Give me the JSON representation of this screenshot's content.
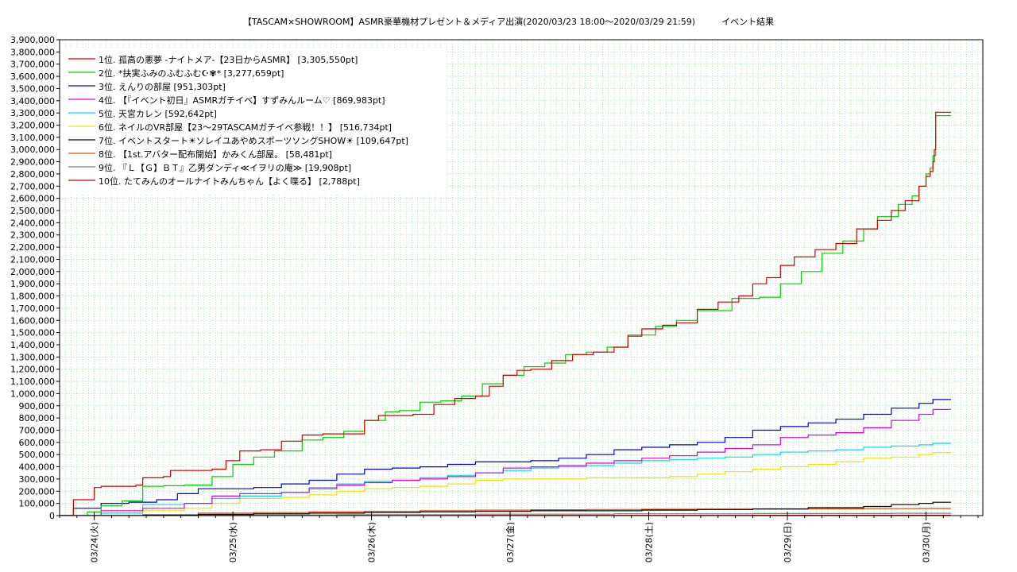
{
  "chart_data": {
    "type": "line",
    "title": "【TASCAM×SHOWROOM】ASMR豪華機材プレゼント＆メディア出演(2020/03/23 18:00〜2020/03/29 21:59)　　　イベント結果",
    "xlabel": "",
    "ylabel": "",
    "x_range_days": [
      0,
      6.66
    ],
    "ylim": [
      0,
      3900000
    ],
    "grid": true,
    "legend_placement": "top-left",
    "x_tick_labels": [
      "03/24(火)",
      "03/25(水)",
      "03/26(木)",
      "03/27(金)",
      "03/28(土)",
      "03/29(日)",
      "03/30(月)"
    ],
    "x_tick_positions_days": [
      0.25,
      1.25,
      2.25,
      3.25,
      4.25,
      5.25,
      6.25
    ],
    "y_ticks": [
      0,
      100000,
      200000,
      300000,
      400000,
      500000,
      600000,
      700000,
      800000,
      900000,
      1000000,
      1100000,
      1200000,
      1300000,
      1400000,
      1500000,
      1600000,
      1700000,
      1800000,
      1900000,
      2000000,
      2100000,
      2200000,
      2300000,
      2400000,
      2500000,
      2600000,
      2700000,
      2800000,
      2900000,
      3000000,
      3100000,
      3200000,
      3300000,
      3400000,
      3500000,
      3600000,
      3700000,
      3800000,
      3900000
    ],
    "series": [
      {
        "name": "1位. 孤高の悪夢 -ナイトメア-【23日からASMR】 [3,305,550pt]",
        "color": "#d40000",
        "x": [
          0,
          0.1,
          0.25,
          0.3,
          0.55,
          0.6,
          0.75,
          0.8,
          1.1,
          1.2,
          1.3,
          1.45,
          1.6,
          1.75,
          1.9,
          2.2,
          2.3,
          2.55,
          2.7,
          2.85,
          3.0,
          3.1,
          3.2,
          3.3,
          3.4,
          3.55,
          3.7,
          3.85,
          4.0,
          4.1,
          4.2,
          4.35,
          4.45,
          4.6,
          4.75,
          4.9,
          5.0,
          5.1,
          5.2,
          5.3,
          5.45,
          5.6,
          5.75,
          5.9,
          6.0,
          6.1,
          6.2,
          6.25,
          6.28,
          6.3,
          6.31,
          6.32,
          6.35,
          6.43
        ],
        "y": [
          0,
          130000,
          230000,
          240000,
          250000,
          310000,
          320000,
          370000,
          380000,
          450000,
          530000,
          540000,
          610000,
          660000,
          670000,
          780000,
          820000,
          830000,
          910000,
          960000,
          980000,
          1060000,
          1150000,
          1190000,
          1200000,
          1270000,
          1320000,
          1340000,
          1380000,
          1470000,
          1530000,
          1560000,
          1580000,
          1690000,
          1750000,
          1800000,
          1900000,
          1950000,
          2050000,
          2120000,
          2180000,
          2230000,
          2350000,
          2420000,
          2500000,
          2580000,
          2700000,
          2780000,
          2820000,
          2900000,
          3000000,
          3305550,
          3305550,
          3305550
        ]
      },
      {
        "name": "2位. *扶実ふみのふむふむ☪︎✾* [3,277,659pt]",
        "color": "#00d000",
        "x": [
          0,
          0.2,
          0.3,
          0.45,
          0.6,
          0.75,
          0.9,
          1.1,
          1.25,
          1.4,
          1.55,
          1.75,
          1.9,
          2.05,
          2.2,
          2.35,
          2.45,
          2.6,
          2.75,
          2.9,
          3.05,
          3.2,
          3.35,
          3.5,
          3.65,
          3.8,
          3.95,
          4.1,
          4.3,
          4.45,
          4.6,
          4.85,
          5.05,
          5.2,
          5.35,
          5.5,
          5.65,
          5.8,
          5.9,
          6.05,
          6.15,
          6.2,
          6.25,
          6.28,
          6.3,
          6.32,
          6.43
        ],
        "y": [
          0,
          30000,
          80000,
          120000,
          240000,
          245000,
          250000,
          320000,
          420000,
          480000,
          530000,
          620000,
          640000,
          690000,
          780000,
          850000,
          860000,
          930000,
          940000,
          980000,
          1080000,
          1150000,
          1220000,
          1250000,
          1320000,
          1340000,
          1380000,
          1480000,
          1550000,
          1600000,
          1680000,
          1780000,
          1790000,
          1900000,
          2000000,
          2150000,
          2250000,
          2350000,
          2450000,
          2550000,
          2620000,
          2700000,
          2800000,
          2850000,
          2950000,
          3277659,
          3277659
        ]
      },
      {
        "name": "3位. えんりの部屋 [951,303pt]",
        "color": "#0000d0",
        "x": [
          0,
          0.1,
          0.3,
          0.5,
          0.7,
          0.85,
          1.0,
          1.2,
          1.4,
          1.6,
          1.8,
          2.0,
          2.2,
          2.4,
          2.6,
          2.8,
          3.0,
          3.2,
          3.4,
          3.6,
          3.8,
          4.0,
          4.2,
          4.4,
          4.6,
          4.8,
          5.0,
          5.2,
          5.4,
          5.6,
          5.8,
          6.0,
          6.2,
          6.3,
          6.43
        ],
        "y": [
          0,
          60000,
          100000,
          110000,
          130000,
          180000,
          220000,
          220000,
          230000,
          260000,
          290000,
          340000,
          380000,
          390000,
          400000,
          420000,
          440000,
          440000,
          450000,
          470000,
          500000,
          540000,
          560000,
          580000,
          600000,
          640000,
          700000,
          730000,
          760000,
          790000,
          830000,
          880000,
          920000,
          951303,
          951303
        ]
      },
      {
        "name": "4位. 【『イベント初日』ASMRガチイベ】すずみんルーム♡ [869,983pt]",
        "color": "#e000e0",
        "x": [
          0,
          0.3,
          0.6,
          0.9,
          1.1,
          1.3,
          1.6,
          1.8,
          2.0,
          2.2,
          2.4,
          2.6,
          2.8,
          3.0,
          3.2,
          3.4,
          3.6,
          3.8,
          4.0,
          4.2,
          4.4,
          4.6,
          4.8,
          5.0,
          5.2,
          5.4,
          5.6,
          5.8,
          6.0,
          6.2,
          6.3,
          6.43
        ],
        "y": [
          0,
          40000,
          60000,
          100000,
          160000,
          180000,
          190000,
          220000,
          250000,
          270000,
          290000,
          300000,
          320000,
          350000,
          390000,
          400000,
          410000,
          430000,
          450000,
          470000,
          490000,
          520000,
          550000,
          580000,
          640000,
          660000,
          680000,
          720000,
          780000,
          830000,
          869983,
          869983
        ]
      },
      {
        "name": "5位. 天宮カレン [592,642pt]",
        "color": "#00e0e0",
        "x": [
          0,
          0.3,
          0.6,
          0.9,
          1.1,
          1.3,
          1.6,
          1.8,
          2.0,
          2.2,
          2.4,
          2.6,
          2.8,
          3.0,
          3.2,
          3.4,
          3.6,
          3.8,
          4.0,
          4.2,
          4.4,
          4.6,
          4.8,
          5.0,
          5.2,
          5.4,
          5.6,
          5.8,
          6.0,
          6.2,
          6.3,
          6.43
        ],
        "y": [
          0,
          20000,
          90000,
          100000,
          140000,
          160000,
          190000,
          230000,
          260000,
          280000,
          290000,
          310000,
          330000,
          350000,
          370000,
          390000,
          400000,
          410000,
          430000,
          450000,
          460000,
          470000,
          480000,
          500000,
          520000,
          530000,
          540000,
          560000,
          570000,
          580000,
          592642,
          592642
        ]
      },
      {
        "name": "6位. ネイルのVR部屋【23〜29TASCAMガチイベ参戦！！】 [516,734pt]",
        "color": "#e8e800",
        "x": [
          0,
          0.3,
          0.6,
          0.9,
          1.1,
          1.3,
          1.6,
          1.8,
          2.0,
          2.2,
          2.4,
          2.6,
          2.8,
          3.0,
          3.2,
          3.4,
          3.6,
          3.8,
          4.0,
          4.2,
          4.4,
          4.6,
          4.8,
          5.0,
          5.2,
          5.4,
          5.6,
          5.8,
          6.0,
          6.2,
          6.3,
          6.43
        ],
        "y": [
          0,
          20000,
          40000,
          60000,
          100000,
          140000,
          150000,
          170000,
          200000,
          220000,
          230000,
          240000,
          260000,
          290000,
          300000,
          300000,
          300000,
          310000,
          310000,
          310000,
          320000,
          340000,
          360000,
          380000,
          400000,
          420000,
          440000,
          470000,
          480000,
          500000,
          516734,
          516734
        ]
      },
      {
        "name": "7位. イベントスタート☀︎ソレイユあやめスポーツソングSHOW☀︎ [109,647pt]",
        "color": "#000000",
        "x": [
          0,
          0.6,
          1.0,
          1.4,
          1.8,
          2.2,
          2.6,
          3.0,
          3.4,
          3.8,
          4.2,
          4.6,
          5.0,
          5.4,
          5.8,
          6.0,
          6.2,
          6.3,
          6.43
        ],
        "y": [
          0,
          5000,
          10000,
          15000,
          20000,
          25000,
          30000,
          35000,
          40000,
          40000,
          45000,
          50000,
          55000,
          65000,
          75000,
          90000,
          100000,
          109647,
          109647
        ]
      },
      {
        "name": "8位. 【1st.アバター配布開始】かみくん部屋。 [58,481pt]",
        "color": "#e05000",
        "x": [
          0,
          0.6,
          1.0,
          1.4,
          1.8,
          2.2,
          2.6,
          3.0,
          3.4,
          3.8,
          4.2,
          4.6,
          5.0,
          5.4,
          5.8,
          6.2,
          6.43
        ],
        "y": [
          0,
          5000,
          20000,
          25000,
          30000,
          35000,
          40000,
          45000,
          48000,
          50000,
          52000,
          53000,
          55000,
          56000,
          57000,
          58481,
          58481
        ]
      },
      {
        "name": "9位. 『Ｌ【Ｇ】ＢＴ』乙男ダンディ≪イヲリの庵≫ [19,908pt]",
        "color": "#808080",
        "x": [
          0,
          1.0,
          2.0,
          3.0,
          4.0,
          5.0,
          6.0,
          6.43
        ],
        "y": [
          0,
          5000,
          8000,
          12000,
          15000,
          17000,
          19000,
          19908
        ]
      },
      {
        "name": "10位. たてみんのオールナイトみんちゃん【よく喋る】 [2,788pt]",
        "color": "#d40000",
        "x": [
          0,
          1.0,
          3.0,
          5.0,
          6.43
        ],
        "y": [
          0,
          1000,
          2000,
          2500,
          2788
        ]
      }
    ]
  }
}
